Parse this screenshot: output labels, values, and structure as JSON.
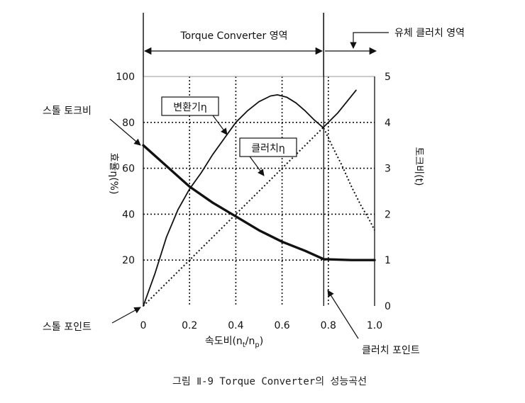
{
  "chart_data": {
    "type": "line",
    "xlabel": "속도비(n",
    "xlabel_sub1": "t",
    "xlabel_mid": "/n",
    "xlabel_sub2": "p",
    "xlabel_end": ")",
    "ylabel_left": "효율η(%)",
    "ylabel_right": "토크비(t)",
    "x_ticks": [
      "0",
      "0.2",
      "0.4",
      "0.6",
      "0.8",
      "1.0"
    ],
    "y_left_ticks": [
      "100",
      "80",
      "60",
      "40",
      "20"
    ],
    "y_right_ticks": [
      "0",
      "1",
      "2",
      "3",
      "4",
      "5"
    ],
    "xlim": [
      0,
      1.0
    ],
    "ylim_left": [
      0,
      100
    ],
    "ylim_right": [
      0,
      5
    ],
    "grid": true,
    "series": [
      {
        "name": "변환기η",
        "axis": "left",
        "style": "solid",
        "x": [
          0,
          0.05,
          0.1,
          0.15,
          0.2,
          0.25,
          0.3,
          0.35,
          0.4,
          0.45,
          0.5,
          0.55,
          0.58,
          0.62,
          0.66,
          0.7,
          0.74,
          0.78
        ],
        "y": [
          0,
          14,
          30,
          42,
          51,
          58,
          66,
          73,
          80,
          85,
          89,
          91.5,
          92,
          91,
          88.5,
          85,
          81,
          77.5
        ]
      },
      {
        "name": "",
        "axis": "left",
        "style": "dotted",
        "x": [
          0.78,
          0.82,
          0.86,
          0.9,
          0.94,
          0.98,
          1.0
        ],
        "y": [
          77.5,
          69,
          61,
          52,
          44,
          37,
          33
        ]
      },
      {
        "name": "",
        "axis": "left",
        "style": "solid",
        "x": [
          0.78,
          0.84,
          0.88,
          0.92
        ],
        "y": [
          78,
          84,
          89,
          94
        ]
      },
      {
        "name": "클러치η",
        "axis": "left",
        "style": "dotted",
        "x": [
          0,
          0.78
        ],
        "y": [
          0,
          78
        ]
      },
      {
        "name": "",
        "axis": "right",
        "style": "bold",
        "x": [
          0,
          0.1,
          0.2,
          0.3,
          0.4,
          0.5,
          0.6,
          0.7,
          0.78,
          0.9,
          1.0
        ],
        "y": [
          3.5,
          3.05,
          2.6,
          2.25,
          1.95,
          1.65,
          1.4,
          1.2,
          1.02,
          1.0,
          1.0
        ]
      }
    ],
    "annotations": [
      {
        "text": "Torque Converter 영역"
      },
      {
        "text": "유체 클러치 영역"
      },
      {
        "text": "스톨 토크비"
      },
      {
        "text": "스톨 포인트"
      },
      {
        "text": "클러치 포인트"
      }
    ],
    "caption": "그림 Ⅱ-9 Torque Converter의 성능곡선"
  },
  "labels": {
    "converter_eff_main": "변환기η",
    "clutch_eff_main": "클러치η"
  }
}
